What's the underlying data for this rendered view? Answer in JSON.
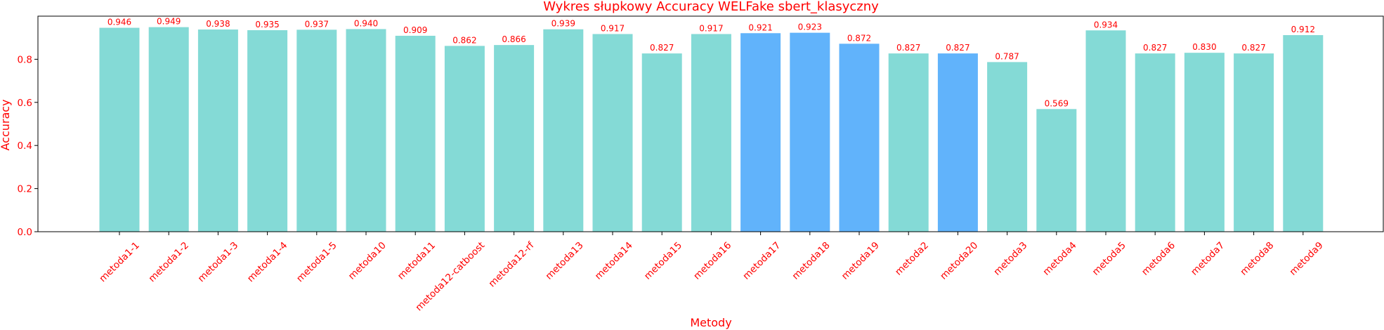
{
  "chart_data": {
    "type": "bar",
    "title": "Wykres słupkowy Accuracy WELFake sbert_klasyczny",
    "xlabel": "Metody",
    "ylabel": "Accuracy",
    "ylim": [
      0,
      1.0
    ],
    "yticks": [
      "0.0",
      "0.2",
      "0.4",
      "0.6",
      "0.8"
    ],
    "yticks_values": [
      0,
      0.2,
      0.4,
      0.6,
      0.8
    ],
    "grid": false,
    "categories": [
      "metoda1-1",
      "metoda1-2",
      "metoda1-3",
      "metoda1-4",
      "metoda1-5",
      "metoda10",
      "metoda11",
      "metoda12-catboost",
      "metoda12-rf",
      "metoda13",
      "metoda14",
      "metoda15",
      "metoda16",
      "metoda17",
      "metoda18",
      "metoda19",
      "metoda2",
      "metoda20",
      "metoda3",
      "metoda4",
      "metoda5",
      "metoda6",
      "metoda7",
      "metoda8",
      "metoda9"
    ],
    "values": [
      0.946,
      0.949,
      0.938,
      0.935,
      0.937,
      0.94,
      0.909,
      0.862,
      0.866,
      0.939,
      0.917,
      0.827,
      0.917,
      0.921,
      0.923,
      0.872,
      0.827,
      0.827,
      0.787,
      0.569,
      0.934,
      0.827,
      0.83,
      0.827,
      0.912
    ],
    "value_labels": [
      "0.946",
      "0.949",
      "0.938",
      "0.935",
      "0.937",
      "0.940",
      "0.909",
      "0.862",
      "0.866",
      "0.939",
      "0.917",
      "0.827",
      "0.917",
      "0.921",
      "0.923",
      "0.872",
      "0.827",
      "0.827",
      "0.787",
      "0.569",
      "0.934",
      "0.827",
      "0.830",
      "0.827",
      "0.912"
    ],
    "highlighted": [
      "metoda17",
      "metoda18",
      "metoda19",
      "metoda20"
    ],
    "colors": {
      "bar": "#84dad6",
      "highlight": "#61b3fb",
      "text": "#ff0000",
      "axis": "#000000"
    }
  }
}
